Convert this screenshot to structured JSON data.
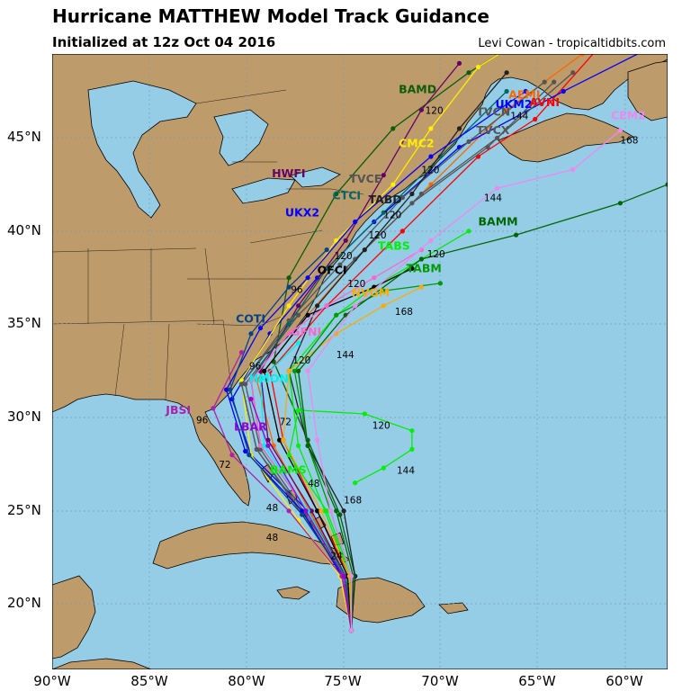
{
  "header": {
    "title": "Hurricane MATTHEW Model Track Guidance",
    "subtitle": "Initialized at 12z Oct 04 2016",
    "credit": "Levi Cowan - tropicaltidbits.com"
  },
  "axes": {
    "lat_labels": [
      "45°N",
      "40°N",
      "35°N",
      "30°N",
      "25°N",
      "20°N"
    ],
    "lon_labels": [
      "90°W",
      "85°W",
      "80°W",
      "75°W",
      "70°W",
      "65°W",
      "60°W"
    ]
  },
  "colors": {
    "ocean": "#95cde7",
    "land": "#bd9b6b",
    "grid": "#7d9bb0"
  },
  "models": [
    {
      "name": "BAMD",
      "color": "#0b5d0b",
      "points": [
        [
          -74.2,
          18.6
        ],
        [
          -74.0,
          21.5
        ],
        [
          -74.8,
          24.8
        ],
        [
          -76.5,
          28.8
        ],
        [
          -78.3,
          33.0
        ],
        [
          -77.5,
          37.5
        ],
        [
          -75.0,
          42.0
        ],
        [
          -72.0,
          45.5
        ],
        [
          -68.0,
          48.5
        ],
        [
          -64.0,
          51.0
        ]
      ]
    },
    {
      "name": "AEMI",
      "color": "#ff6600",
      "points": [
        [
          -74.2,
          18.6
        ],
        [
          -74.5,
          21.5
        ],
        [
          -76.3,
          24.8
        ],
        [
          -78.3,
          28.5
        ],
        [
          -79.2,
          32.0
        ],
        [
          -76.5,
          35.5
        ],
        [
          -73.5,
          39.0
        ],
        [
          -70.0,
          42.5
        ],
        [
          -66.0,
          46.5
        ],
        [
          -62.0,
          49.5
        ]
      ]
    },
    {
      "name": "AVNI",
      "color": "#ff0000",
      "points": [
        [
          -74.2,
          18.6
        ],
        [
          -74.3,
          21.5
        ],
        [
          -76.0,
          25.0
        ],
        [
          -77.8,
          28.8
        ],
        [
          -78.5,
          32.5
        ],
        [
          -75.5,
          36.0
        ],
        [
          -71.5,
          40.0
        ],
        [
          -67.5,
          44.0
        ],
        [
          -64.5,
          46.0
        ],
        [
          -61.0,
          50.0
        ]
      ]
    },
    {
      "name": "UKM2",
      "color": "#0000ff",
      "points": [
        [
          -74.2,
          18.6
        ],
        [
          -74.6,
          21.5
        ],
        [
          -76.5,
          25.0
        ],
        [
          -79.5,
          28.0
        ],
        [
          -80.5,
          31.0
        ],
        [
          -78.5,
          34.5
        ],
        [
          -76.0,
          37.5
        ],
        [
          -73.0,
          40.5
        ],
        [
          -68.5,
          44.5
        ],
        [
          -63.0,
          47.5
        ],
        [
          -58.5,
          49.8
        ]
      ]
    },
    {
      "name": "TVCN",
      "color": "#555555",
      "points": [
        [
          -74.2,
          18.6
        ],
        [
          -74.5,
          21.5
        ],
        [
          -76.6,
          24.8
        ],
        [
          -79.0,
          28.3
        ],
        [
          -79.8,
          31.8
        ],
        [
          -77.0,
          35.5
        ],
        [
          -74.0,
          38.5
        ],
        [
          -70.5,
          42.0
        ],
        [
          -66.5,
          45.0
        ],
        [
          -62.5,
          48.5
        ]
      ]
    },
    {
      "name": "TVCX",
      "color": "#555555",
      "points": [
        [
          -74.2,
          18.6
        ],
        [
          -74.6,
          21.5
        ],
        [
          -76.8,
          24.8
        ],
        [
          -79.2,
          28.3
        ],
        [
          -80.0,
          31.8
        ],
        [
          -77.5,
          35.0
        ],
        [
          -74.5,
          38.0
        ],
        [
          -71.0,
          41.5
        ],
        [
          -67.0,
          44.5
        ],
        [
          -63.5,
          48.0
        ]
      ]
    },
    {
      "name": "CMC2",
      "color": "#ffee00",
      "points": [
        [
          -74.2,
          18.6
        ],
        [
          -74.8,
          21.5
        ],
        [
          -77.0,
          24.5
        ],
        [
          -79.5,
          28.0
        ],
        [
          -80.0,
          32.0
        ],
        [
          -77.5,
          36.0
        ],
        [
          -75.0,
          39.5
        ],
        [
          -72.0,
          42.5
        ],
        [
          -70.0,
          45.5
        ],
        [
          -67.5,
          48.8
        ],
        [
          -64.0,
          51.0
        ]
      ]
    },
    {
      "name": "HWFI",
      "color": "#660066",
      "points": [
        [
          -74.2,
          18.6
        ],
        [
          -74.5,
          21.5
        ],
        [
          -76.3,
          25.0
        ],
        [
          -78.6,
          28.8
        ],
        [
          -79.0,
          32.5
        ],
        [
          -77.0,
          36.0
        ],
        [
          -74.5,
          39.5
        ],
        [
          -72.5,
          43.0
        ],
        [
          -70.5,
          46.5
        ],
        [
          -68.5,
          49.0
        ]
      ]
    },
    {
      "name": "TVCE",
      "color": "#555555",
      "points": [
        [
          -74.2,
          18.6
        ],
        [
          -74.6,
          21.5
        ],
        [
          -76.7,
          24.8
        ],
        [
          -79.2,
          28.3
        ],
        [
          -80.0,
          31.8
        ],
        [
          -77.5,
          35.2
        ],
        [
          -74.8,
          38.2
        ],
        [
          -71.5,
          41.8
        ],
        [
          -68.0,
          44.8
        ],
        [
          -64.0,
          48.0
        ]
      ]
    },
    {
      "name": "CTCI",
      "color": "#006666",
      "points": [
        [
          -74.2,
          18.6
        ],
        [
          -74.5,
          21.5
        ],
        [
          -76.5,
          25.0
        ],
        [
          -79.0,
          28.5
        ],
        [
          -79.5,
          32.0
        ],
        [
          -77.5,
          35.0
        ],
        [
          -75.5,
          38.0
        ],
        [
          -72.5,
          41.0
        ],
        [
          -69.5,
          44.0
        ],
        [
          -66.0,
          47.5
        ]
      ]
    },
    {
      "name": "TABD",
      "color": "#222222",
      "points": [
        [
          -74.2,
          18.6
        ],
        [
          -74.0,
          21.5
        ],
        [
          -74.6,
          25.0
        ],
        [
          -76.5,
          28.5
        ],
        [
          -77.5,
          32.5
        ],
        [
          -76.0,
          36.0
        ],
        [
          -73.5,
          39.0
        ],
        [
          -71.0,
          42.0
        ],
        [
          -68.5,
          45.5
        ],
        [
          -66.0,
          48.5
        ]
      ]
    },
    {
      "name": "UKX2",
      "color": "#0000ff",
      "points": [
        [
          -74.2,
          18.6
        ],
        [
          -74.7,
          21.5
        ],
        [
          -76.8,
          25.0
        ],
        [
          -79.8,
          28.2
        ],
        [
          -80.8,
          31.5
        ],
        [
          -79.0,
          34.8
        ],
        [
          -76.5,
          37.5
        ],
        [
          -74.0,
          40.5
        ],
        [
          -70.0,
          44.0
        ],
        [
          -65.0,
          47.5
        ]
      ]
    },
    {
      "name": "TABS",
      "color": "#00ee00",
      "points": [
        [
          -74.2,
          18.6
        ],
        [
          -74.3,
          21.5
        ],
        [
          -75.6,
          25.0
        ],
        [
          -77.0,
          28.5
        ],
        [
          -77.5,
          32.5
        ],
        [
          -75.0,
          35.5
        ],
        [
          -73.0,
          37.0
        ],
        [
          -70.5,
          38.5
        ],
        [
          -68.0,
          40.0
        ]
      ]
    },
    {
      "name": "TABM",
      "color": "#009900",
      "points": [
        [
          -74.2,
          18.6
        ],
        [
          -74.2,
          21.5
        ],
        [
          -75.3,
          25.0
        ],
        [
          -76.5,
          28.5
        ],
        [
          -77.2,
          32.5
        ],
        [
          -75.0,
          35.5
        ],
        [
          -72.5,
          36.8
        ],
        [
          -69.5,
          37.2
        ]
      ]
    },
    {
      "name": "OFCI",
      "color": "#000000",
      "points": [
        [
          -74.2,
          18.6
        ],
        [
          -74.4,
          21.5
        ],
        [
          -76.0,
          25.0
        ],
        [
          -78.0,
          28.8
        ],
        [
          -78.8,
          32.5
        ],
        [
          -76.5,
          35.5
        ],
        [
          -73.0,
          37.0
        ],
        [
          -71.0,
          38.0
        ]
      ]
    },
    {
      "name": "NVGM",
      "color": "#ffaa00",
      "points": [
        [
          -74.2,
          18.6
        ],
        [
          -74.3,
          21.5
        ],
        [
          -75.8,
          25.0
        ],
        [
          -77.8,
          28.8
        ],
        [
          -77.5,
          32.5
        ],
        [
          -75.0,
          34.5
        ],
        [
          -72.5,
          36.0
        ],
        [
          -70.5,
          37.0
        ]
      ]
    },
    {
      "name": "GFNI",
      "color": "#ff66cc",
      "points": [
        [
          -74.2,
          18.6
        ],
        [
          -74.6,
          21.5
        ],
        [
          -76.5,
          25.0
        ],
        [
          -79.0,
          28.5
        ],
        [
          -79.5,
          32.0
        ],
        [
          -77.5,
          34.5
        ],
        [
          -75.5,
          36.0
        ],
        [
          -73.0,
          37.5
        ],
        [
          -70.5,
          39.0
        ]
      ]
    },
    {
      "name": "COTI",
      "color": "#004488",
      "points": [
        [
          -74.2,
          18.6
        ],
        [
          -74.6,
          21.5
        ],
        [
          -76.8,
          24.8
        ],
        [
          -79.6,
          28.0
        ],
        [
          -80.6,
          31.5
        ],
        [
          -79.5,
          34.5
        ],
        [
          -77.5,
          37.0
        ],
        [
          -75.5,
          39.0
        ]
      ]
    },
    {
      "name": "HMON",
      "color": "#00eeee",
      "points": [
        [
          -74.2,
          18.6
        ],
        [
          -74.6,
          21.5
        ],
        [
          -76.5,
          25.0
        ],
        [
          -78.8,
          28.5
        ],
        [
          -79.0,
          32.0
        ],
        [
          -77.0,
          34.0
        ]
      ]
    },
    {
      "name": "JBSI",
      "color": "#aa22aa",
      "points": [
        [
          -74.2,
          18.6
        ],
        [
          -74.7,
          21.5
        ],
        [
          -77.5,
          25.0
        ],
        [
          -80.5,
          28.0
        ],
        [
          -81.5,
          30.5
        ],
        [
          -80.0,
          33.5
        ]
      ]
    },
    {
      "name": "LBAR",
      "color": "#9900cc",
      "points": [
        [
          -74.2,
          18.6
        ],
        [
          -74.6,
          21.5
        ],
        [
          -76.6,
          25.0
        ],
        [
          -78.6,
          28.5
        ],
        [
          -79.5,
          31.0
        ]
      ]
    },
    {
      "name": "BAMS",
      "color": "#00ee00",
      "points": [
        [
          -74.2,
          18.6
        ],
        [
          -74.2,
          21.5
        ],
        [
          -75.5,
          25.0
        ],
        [
          -77.5,
          28.0
        ],
        [
          -77.0,
          30.4
        ],
        [
          -73.5,
          30.2
        ],
        [
          -71.0,
          29.3
        ],
        [
          -71.0,
          28.3
        ],
        [
          -72.5,
          27.3
        ],
        [
          -74.0,
          26.5
        ]
      ]
    },
    {
      "name": "BAMM",
      "color": "#006600",
      "points": [
        [
          -74.2,
          18.6
        ],
        [
          -74.1,
          21.5
        ],
        [
          -75.0,
          25.0
        ],
        [
          -76.5,
          28.5
        ],
        [
          -77.0,
          32.5
        ],
        [
          -74.5,
          35.5
        ],
        [
          -70.5,
          38.5
        ],
        [
          -65.5,
          39.8
        ],
        [
          -60.0,
          41.5
        ],
        [
          -57.5,
          42.5
        ]
      ]
    },
    {
      "name": "CEM2",
      "color": "#ee88ee",
      "points": [
        [
          -74.2,
          18.6
        ],
        [
          -74.2,
          21.5
        ],
        [
          -75.3,
          25.0
        ],
        [
          -76.0,
          28.8
        ],
        [
          -76.5,
          32.5
        ],
        [
          -74.0,
          36.0
        ],
        [
          -70.0,
          39.5
        ],
        [
          -66.5,
          42.3
        ],
        [
          -62.5,
          43.3
        ],
        [
          -60.0,
          45.4
        ]
      ]
    }
  ],
  "labels": [
    {
      "text": "BAMD",
      "color": "#0b5d0b",
      "lon": -71.7,
      "lat": 47.4
    },
    {
      "text": "AEMI",
      "color": "#ff6600",
      "lon": -65.9,
      "lat": 47.1
    },
    {
      "text": "UKM2",
      "color": "#0000ff",
      "lon": -66.6,
      "lat": 46.6
    },
    {
      "text": "AVNI",
      "color": "#ff0000",
      "lon": -64.8,
      "lat": 46.7
    },
    {
      "text": "TVCN",
      "color": "#555555",
      "lon": -67.6,
      "lat": 46.2
    },
    {
      "text": "CEM2",
      "color": "#ee88ee",
      "lon": -60.5,
      "lat": 46.0
    },
    {
      "text": "TVCX",
      "color": "#555555",
      "lon": -67.6,
      "lat": 45.2
    },
    {
      "text": "CMC2",
      "color": "#ffee00",
      "lon": -71.7,
      "lat": 44.5
    },
    {
      "text": "HWFI",
      "color": "#660066",
      "lon": -78.4,
      "lat": 42.9
    },
    {
      "text": "TVCE",
      "color": "#555555",
      "lon": -74.3,
      "lat": 42.6
    },
    {
      "text": "CTCI",
      "color": "#006666",
      "lon": -75.2,
      "lat": 41.7
    },
    {
      "text": "TABD",
      "color": "#222222",
      "lon": -73.3,
      "lat": 41.5
    },
    {
      "text": "UKX2",
      "color": "#0000ff",
      "lon": -77.7,
      "lat": 40.8
    },
    {
      "text": "BAMM",
      "color": "#006600",
      "lon": -67.5,
      "lat": 40.3
    },
    {
      "text": "TABS",
      "color": "#00ee00",
      "lon": -72.8,
      "lat": 39.0
    },
    {
      "text": "TABM",
      "color": "#009900",
      "lon": -71.3,
      "lat": 37.8
    },
    {
      "text": "OFCI",
      "color": "#000000",
      "lon": -76.0,
      "lat": 37.7
    },
    {
      "text": "NVGM",
      "color": "#ffaa00",
      "lon": -74.2,
      "lat": 36.5
    },
    {
      "text": "COTI",
      "color": "#004488",
      "lon": -80.3,
      "lat": 35.1
    },
    {
      "text": "GFNI",
      "color": "#ff66cc",
      "lon": -77.4,
      "lat": 34.4
    },
    {
      "text": "HMON",
      "color": "#00eeee",
      "lon": -79.6,
      "lat": 31.9
    },
    {
      "text": "JBSI",
      "color": "#aa22aa",
      "lon": -84.0,
      "lat": 30.2
    },
    {
      "text": "LBAR",
      "color": "#9900cc",
      "lon": -80.4,
      "lat": 29.3
    },
    {
      "text": "BAMS",
      "color": "#00ee00",
      "lon": -78.5,
      "lat": 27.0
    }
  ],
  "hour_labels": [
    {
      "text": "120",
      "lon": -70.3,
      "lat": 46.3
    },
    {
      "text": "144",
      "lon": -65.8,
      "lat": 46.0
    },
    {
      "text": "168",
      "lon": -60.0,
      "lat": 44.7
    },
    {
      "text": "120",
      "lon": -70.5,
      "lat": 43.1
    },
    {
      "text": "120",
      "lon": -72.5,
      "lat": 40.7
    },
    {
      "text": "144",
      "lon": -67.2,
      "lat": 41.6
    },
    {
      "text": "120",
      "lon": -73.3,
      "lat": 39.6
    },
    {
      "text": "120",
      "lon": -75.1,
      "lat": 38.5
    },
    {
      "text": "120",
      "lon": -70.2,
      "lat": 38.6
    },
    {
      "text": "120",
      "lon": -74.4,
      "lat": 37.0
    },
    {
      "text": "168",
      "lon": -71.9,
      "lat": 35.5
    },
    {
      "text": "144",
      "lon": -75.0,
      "lat": 33.2
    },
    {
      "text": "120",
      "lon": -77.3,
      "lat": 32.9
    },
    {
      "text": "120",
      "lon": -73.1,
      "lat": 29.4
    },
    {
      "text": "144",
      "lon": -71.8,
      "lat": 27.0
    },
    {
      "text": "168",
      "lon": -74.6,
      "lat": 25.4
    },
    {
      "text": "96",
      "lon": -82.4,
      "lat": 29.7
    },
    {
      "text": "72",
      "lon": -81.2,
      "lat": 27.3
    },
    {
      "text": "72",
      "lon": -78.0,
      "lat": 29.6
    },
    {
      "text": "48",
      "lon": -78.7,
      "lat": 25.0
    },
    {
      "text": "48",
      "lon": -78.7,
      "lat": 23.4
    },
    {
      "text": "48",
      "lon": -76.5,
      "lat": 26.3
    },
    {
      "text": "24",
      "lon": -75.3,
      "lat": 22.4
    },
    {
      "text": "96",
      "lon": -77.4,
      "lat": 36.7
    },
    {
      "text": "96",
      "lon": -79.6,
      "lat": 32.6
    }
  ]
}
